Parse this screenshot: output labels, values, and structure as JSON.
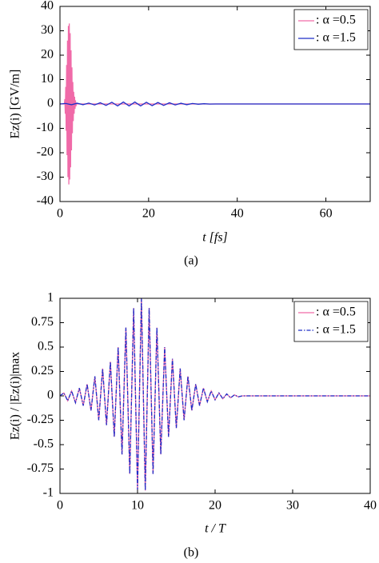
{
  "chart_data": [
    {
      "type": "line",
      "caption": "(a)",
      "xlabel": "t [fs]",
      "ylabel": "Ez(i) [GV/m]",
      "xlim": [
        0,
        70
      ],
      "xticks": [
        0,
        20,
        40,
        60
      ],
      "ylim": [
        -40,
        40
      ],
      "yticks": [
        -40,
        -30,
        -20,
        -10,
        0,
        10,
        20,
        30,
        40
      ],
      "legend": "upper right",
      "series": [
        {
          "name": ": α =0.5",
          "color": "#f06aa8",
          "style": "solid",
          "x": [
            0,
            1.0,
            1.1,
            1.2,
            1.3,
            1.4,
            1.5,
            1.6,
            1.7,
            1.8,
            1.9,
            2.0,
            2.1,
            2.2,
            2.3,
            2.4,
            2.5,
            2.6,
            2.7,
            2.8,
            2.9,
            3.0,
            3.1,
            3.2,
            3.3,
            3.4,
            3.5,
            3.6,
            3.7,
            3.8,
            70
          ],
          "values": [
            0,
            0,
            2,
            -4,
            7,
            -11,
            16,
            -21,
            26,
            -30,
            32,
            -33,
            33,
            -31,
            29,
            -26,
            22,
            -19,
            15,
            -12,
            9,
            -7,
            5,
            -4,
            3,
            -2,
            1.5,
            -1,
            0.5,
            0,
            0
          ]
        },
        {
          "name": ": α =1.5",
          "color": "#1f2fc8",
          "style": "solid",
          "x": [
            0,
            1.3,
            2.6,
            3.9,
            5.2,
            6.5,
            7.8,
            9.1,
            10.4,
            11.7,
            13,
            14.3,
            15.6,
            16.9,
            18.2,
            19.5,
            20.8,
            22.1,
            23.4,
            24.7,
            26,
            27.3,
            28.6,
            29.9,
            31.2,
            32.5,
            33.8,
            35.1,
            36.4,
            70
          ],
          "values": [
            0,
            0.2,
            -0.3,
            0.3,
            -0.3,
            0.35,
            -0.4,
            0.5,
            -0.6,
            0.7,
            -0.8,
            0.8,
            -0.8,
            0.8,
            -0.8,
            0.7,
            -0.7,
            0.6,
            -0.6,
            0.5,
            -0.4,
            0.3,
            -0.3,
            0.2,
            -0.1,
            0.1,
            -0.05,
            0,
            0,
            0
          ]
        }
      ]
    },
    {
      "type": "line",
      "caption": "(b)",
      "xlabel": "t / T",
      "ylabel": "Ez(i) / |Ez(i)|max",
      "xlim": [
        0,
        40
      ],
      "xticks": [
        0,
        10,
        20,
        30,
        40
      ],
      "ylim": [
        -1,
        1
      ],
      "yticks": [
        -1,
        -0.75,
        -0.5,
        -0.25,
        0,
        0.25,
        0.5,
        0.75,
        1
      ],
      "legend": "upper right",
      "series": [
        {
          "name": ": α =0.5",
          "color": "#f06aa8",
          "style": "solid",
          "x": [
            0,
            0.5,
            1,
            1.5,
            2,
            2.5,
            3,
            3.5,
            4,
            4.5,
            5,
            5.5,
            6,
            6.5,
            7,
            7.5,
            8,
            8.5,
            9,
            9.5,
            10,
            10.5,
            11,
            11.5,
            12,
            12.5,
            13,
            13.5,
            14,
            14.5,
            15,
            15.5,
            16,
            16.5,
            17,
            17.5,
            18,
            18.5,
            19,
            19.5,
            20,
            20.5,
            21,
            21.5,
            22,
            22.5,
            23,
            23.5,
            24,
            30,
            40
          ],
          "values": [
            0,
            0.03,
            -0.05,
            0.05,
            -0.07,
            0.08,
            -0.1,
            0.12,
            -0.15,
            0.2,
            -0.25,
            0.28,
            -0.3,
            0.35,
            -0.42,
            0.5,
            -0.6,
            0.7,
            -0.8,
            0.9,
            -0.96,
            1,
            -0.97,
            0.9,
            -0.8,
            0.7,
            -0.6,
            0.5,
            -0.42,
            0.38,
            -0.33,
            0.28,
            -0.25,
            0.2,
            -0.15,
            0.12,
            -0.1,
            0.08,
            -0.06,
            0.05,
            -0.04,
            0.03,
            -0.03,
            0.02,
            -0.02,
            0.01,
            -0.01,
            0,
            0,
            0,
            0
          ]
        },
        {
          "name": ": α =1.5",
          "color": "#1f2fc8",
          "style": "dashdot",
          "x": [
            0,
            0.5,
            1,
            1.5,
            2,
            2.5,
            3,
            3.5,
            4,
            4.5,
            5,
            5.5,
            6,
            6.5,
            7,
            7.5,
            8,
            8.5,
            9,
            9.5,
            10,
            10.5,
            11,
            11.5,
            12,
            12.5,
            13,
            13.5,
            14,
            14.5,
            15,
            15.5,
            16,
            16.5,
            17,
            17.5,
            18,
            18.5,
            19,
            19.5,
            20,
            20.5,
            21,
            21.5,
            22,
            22.5,
            23,
            23.5,
            24,
            30,
            40
          ],
          "values": [
            0,
            0.03,
            -0.05,
            0.05,
            -0.07,
            0.08,
            -0.1,
            0.12,
            -0.15,
            0.2,
            -0.25,
            0.28,
            -0.3,
            0.35,
            -0.42,
            0.5,
            -0.6,
            0.7,
            -0.8,
            0.9,
            -0.96,
            1,
            -0.97,
            0.9,
            -0.8,
            0.7,
            -0.6,
            0.5,
            -0.42,
            0.38,
            -0.33,
            0.28,
            -0.25,
            0.2,
            -0.15,
            0.12,
            -0.1,
            0.08,
            -0.06,
            0.05,
            -0.04,
            0.03,
            -0.03,
            0.02,
            -0.02,
            0.01,
            -0.01,
            0,
            0,
            0,
            0
          ]
        }
      ]
    }
  ]
}
